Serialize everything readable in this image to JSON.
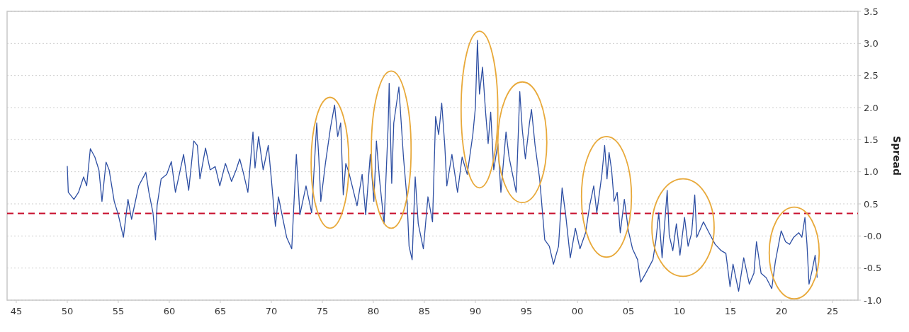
{
  "chart_data": {
    "type": "line",
    "ylabel": "Spread",
    "x": [
      1950.0,
      1950.1,
      1950.65,
      1951.1,
      1951.6,
      1951.9,
      1952.26,
      1952.7,
      1953.1,
      1953.4,
      1953.8,
      1954.1,
      1954.6,
      1955.0,
      1955.5,
      1955.95,
      1956.3,
      1957.0,
      1957.7,
      1958.0,
      1958.4,
      1958.65,
      1958.8,
      1959.2,
      1959.75,
      1960.2,
      1960.6,
      1961.4,
      1961.9,
      1962.4,
      1962.75,
      1963.0,
      1963.55,
      1964.0,
      1964.5,
      1964.95,
      1965.5,
      1966.1,
      1966.55,
      1966.9,
      1967.25,
      1967.7,
      1968.2,
      1968.4,
      1968.75,
      1969.2,
      1969.7,
      1970.0,
      1970.4,
      1970.7,
      1971.05,
      1971.5,
      1972.0,
      1972.45,
      1972.8,
      1973.4,
      1973.95,
      1974.45,
      1974.65,
      1974.85,
      1975.3,
      1975.8,
      1976.2,
      1976.5,
      1976.8,
      1977.05,
      1977.3,
      1977.6,
      1978.4,
      1978.9,
      1979.25,
      1979.7,
      1980.05,
      1980.3,
      1980.6,
      1981.05,
      1981.45,
      1981.55,
      1981.8,
      1982.0,
      1982.5,
      1982.95,
      1983.3,
      1983.5,
      1983.8,
      1984.1,
      1984.4,
      1984.9,
      1985.35,
      1985.8,
      1986.1,
      1986.4,
      1986.7,
      1987.0,
      1987.2,
      1987.7,
      1988.25,
      1988.7,
      1989.2,
      1989.75,
      1990.0,
      1990.2,
      1990.4,
      1990.7,
      1991.0,
      1991.25,
      1991.5,
      1991.8,
      1992.2,
      1992.5,
      1993.0,
      1993.3,
      1994.0,
      1994.35,
      1994.6,
      1994.9,
      1995.3,
      1995.5,
      1995.85,
      1996.3,
      1996.8,
      1997.25,
      1997.65,
      1998.15,
      1998.5,
      1998.85,
      1999.3,
      1999.8,
      2000.25,
      2000.8,
      2001.2,
      2001.6,
      2001.9,
      2002.4,
      2002.67,
      2002.9,
      2003.1,
      2003.35,
      2003.6,
      2003.9,
      2004.2,
      2004.6,
      2005.0,
      2005.4,
      2005.9,
      2006.2,
      2006.7,
      2007.4,
      2007.7,
      2007.97,
      2008.3,
      2008.8,
      2009.0,
      2009.35,
      2009.7,
      2010.05,
      2010.5,
      2010.85,
      2011.2,
      2011.5,
      2011.7,
      2012.35,
      2012.9,
      2013.5,
      2014.1,
      2014.55,
      2014.96,
      2015.25,
      2015.8,
      2016.3,
      2016.85,
      2017.3,
      2017.55,
      2018.0,
      2018.5,
      2019.05,
      2019.4,
      2019.97,
      2020.4,
      2020.8,
      2021.2,
      2021.7,
      2022.0,
      2022.3,
      2022.5,
      2022.7,
      2023.0,
      2023.3,
      2023.5
    ],
    "series": [
      {
        "color": "#2e4fa3",
        "values": [
          1.09,
          0.68,
          0.57,
          0.68,
          0.92,
          0.78,
          1.36,
          1.23,
          1.03,
          0.54,
          1.15,
          1.03,
          0.54,
          0.33,
          -0.02,
          0.57,
          0.26,
          0.78,
          0.99,
          0.68,
          0.36,
          -0.06,
          0.47,
          0.89,
          0.96,
          1.16,
          0.68,
          1.27,
          0.71,
          1.48,
          1.41,
          0.89,
          1.37,
          1.03,
          1.08,
          0.78,
          1.13,
          0.85,
          1.03,
          1.2,
          0.99,
          0.68,
          1.62,
          1.06,
          1.55,
          1.03,
          1.41,
          0.89,
          0.15,
          0.61,
          0.33,
          -0.02,
          -0.2,
          1.27,
          0.33,
          0.78,
          0.36,
          1.76,
          1.23,
          0.54,
          1.13,
          1.69,
          2.04,
          1.55,
          1.76,
          0.64,
          1.13,
          0.99,
          0.47,
          0.96,
          0.33,
          1.27,
          0.54,
          1.48,
          0.89,
          0.19,
          1.72,
          2.38,
          0.82,
          1.76,
          2.32,
          1.23,
          0.57,
          -0.16,
          -0.37,
          0.92,
          0.19,
          -0.2,
          0.61,
          0.22,
          1.86,
          1.58,
          2.07,
          1.41,
          0.78,
          1.27,
          0.68,
          1.23,
          0.96,
          1.58,
          2.0,
          3.05,
          2.21,
          2.63,
          1.93,
          1.44,
          1.93,
          1.03,
          1.44,
          0.68,
          1.62,
          1.23,
          0.68,
          2.25,
          1.65,
          1.2,
          1.76,
          1.97,
          1.41,
          0.89,
          -0.06,
          -0.16,
          -0.44,
          -0.16,
          0.75,
          0.33,
          -0.34,
          0.12,
          -0.2,
          0.05,
          0.47,
          0.78,
          0.36,
          0.96,
          1.41,
          0.89,
          1.3,
          1.03,
          0.54,
          0.68,
          0.05,
          0.57,
          0.08,
          -0.2,
          -0.37,
          -0.72,
          -0.58,
          -0.37,
          -0.06,
          0.36,
          -0.34,
          0.71,
          0.01,
          -0.23,
          0.19,
          -0.3,
          0.29,
          -0.16,
          0.05,
          0.64,
          -0.02,
          0.22,
          0.05,
          -0.13,
          -0.23,
          -0.27,
          -0.79,
          -0.44,
          -0.86,
          -0.34,
          -0.75,
          -0.58,
          -0.09,
          -0.58,
          -0.65,
          -0.82,
          -0.4,
          0.08,
          -0.09,
          -0.13,
          -0.02,
          0.05,
          -0.02,
          0.29,
          -0.13,
          -0.75,
          -0.54,
          -0.3,
          -0.65
        ]
      }
    ],
    "xlim": [
      1944.1,
      2027.5
    ],
    "xticks": [
      {
        "value": 1945,
        "label": "45"
      },
      {
        "value": 1950,
        "label": "50"
      },
      {
        "value": 1955,
        "label": "55"
      },
      {
        "value": 1960,
        "label": "60"
      },
      {
        "value": 1965,
        "label": "65"
      },
      {
        "value": 1970,
        "label": "70"
      },
      {
        "value": 1975,
        "label": "75"
      },
      {
        "value": 1980,
        "label": "80"
      },
      {
        "value": 1985,
        "label": "85"
      },
      {
        "value": 1990,
        "label": "90"
      },
      {
        "value": 1995,
        "label": "95"
      },
      {
        "value": 2000,
        "label": "00"
      },
      {
        "value": 2005,
        "label": "05"
      },
      {
        "value": 2010,
        "label": "10"
      },
      {
        "value": 2015,
        "label": "15"
      },
      {
        "value": 2020,
        "label": "20"
      },
      {
        "value": 2025,
        "label": "25"
      }
    ],
    "ylim": [
      -1.0,
      3.5
    ],
    "yticks": [
      {
        "value": -1,
        "label": "-1.0"
      },
      -0.5,
      {
        "value": 0,
        "label": "-0.0"
      },
      0.5,
      {
        "value": 1,
        "label": "1.0"
      },
      1.5,
      {
        "value": 2,
        "label": "2.0"
      },
      2.5,
      {
        "value": 3,
        "label": "3.0"
      },
      3.5
    ],
    "ref_lines": [
      {
        "axis": "y",
        "value": 0.35,
        "color": "#c8102e",
        "line_style": "dashed"
      }
    ],
    "grid": "y",
    "line_style": "solid",
    "marker": "none"
  }
}
